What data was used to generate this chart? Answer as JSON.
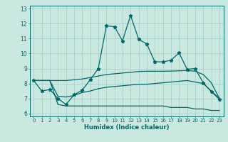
{
  "xlabel": "Humidex (Indice chaleur)",
  "bg_color": "#c8e8e0",
  "grid_color": "#a8d0cc",
  "line_color": "#006868",
  "xlim": [
    -0.5,
    23.5
  ],
  "ylim": [
    5.8,
    13.2
  ],
  "yticks": [
    6,
    7,
    8,
    9,
    10,
    11,
    12,
    13
  ],
  "xticks": [
    0,
    1,
    2,
    3,
    4,
    5,
    6,
    7,
    8,
    9,
    10,
    11,
    12,
    13,
    14,
    15,
    16,
    17,
    18,
    19,
    20,
    21,
    22,
    23
  ],
  "series1": [
    8.2,
    7.5,
    7.6,
    7.0,
    6.6,
    7.25,
    7.55,
    8.25,
    9.0,
    11.85,
    11.8,
    10.85,
    12.55,
    10.95,
    10.65,
    9.45,
    9.45,
    9.55,
    10.05,
    8.95,
    9.0,
    8.05,
    7.45,
    6.95
  ],
  "series2": [
    8.2,
    8.2,
    8.2,
    7.15,
    7.1,
    7.2,
    7.4,
    7.5,
    7.65,
    7.75,
    7.8,
    7.85,
    7.9,
    7.95,
    7.95,
    8.0,
    8.05,
    8.1,
    8.15,
    8.2,
    8.1,
    8.0,
    7.5,
    7.0
  ],
  "series3": [
    8.2,
    8.2,
    8.2,
    8.2,
    8.2,
    8.25,
    8.3,
    8.4,
    8.5,
    8.6,
    8.65,
    8.7,
    8.75,
    8.8,
    8.82,
    8.82,
    8.82,
    8.83,
    8.85,
    8.87,
    8.82,
    8.6,
    8.05,
    7.0
  ],
  "series4": [
    8.2,
    8.2,
    8.2,
    6.6,
    6.5,
    6.5,
    6.5,
    6.5,
    6.5,
    6.5,
    6.5,
    6.5,
    6.5,
    6.5,
    6.5,
    6.5,
    6.5,
    6.4,
    6.4,
    6.4,
    6.3,
    6.3,
    6.2,
    6.2
  ]
}
